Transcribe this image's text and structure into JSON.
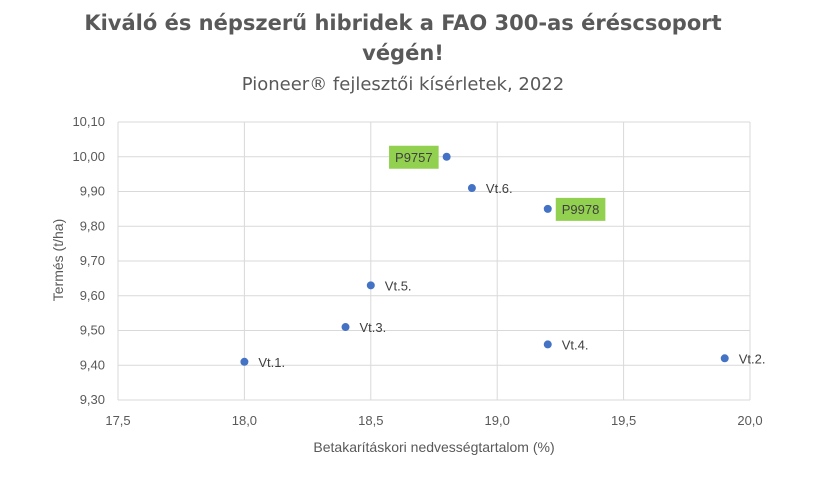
{
  "chart_data": {
    "type": "scatter",
    "title_lines": [
      "Kiváló és népszerű hibridek a FAO 300-as éréscsoport",
      "végén!"
    ],
    "subtitle": "Pioneer® fejlesztői kísérletek, 2022",
    "xlabel": "Betakarításkori nedvességtartalom (%)",
    "ylabel": "Termés (t/ha)",
    "xlim": [
      17.5,
      20.0
    ],
    "ylim": [
      9.3,
      10.1
    ],
    "x_ticks": [
      "17,5",
      "18,0",
      "18,5",
      "19,0",
      "19,5",
      "20,0"
    ],
    "y_ticks": [
      "9,30",
      "9,40",
      "9,50",
      "9,60",
      "9,70",
      "9,80",
      "9,90",
      "10,00",
      "10,10"
    ],
    "grid": true,
    "marker_color": "#4472c4",
    "highlight_color": "#92d050",
    "points": [
      {
        "label": "P9757",
        "x": 18.8,
        "y": 10.0,
        "highlight": true,
        "label_side": "left"
      },
      {
        "label": "Vt.6.",
        "x": 18.9,
        "y": 9.91,
        "highlight": false,
        "label_side": "right"
      },
      {
        "label": "P9978",
        "x": 19.2,
        "y": 9.85,
        "highlight": true,
        "label_side": "right"
      },
      {
        "label": "Vt.5.",
        "x": 18.5,
        "y": 9.63,
        "highlight": false,
        "label_side": "right"
      },
      {
        "label": "Vt.3.",
        "x": 18.4,
        "y": 9.51,
        "highlight": false,
        "label_side": "right"
      },
      {
        "label": "Vt.4.",
        "x": 19.2,
        "y": 9.46,
        "highlight": false,
        "label_side": "right"
      },
      {
        "label": "Vt.1.",
        "x": 18.0,
        "y": 9.41,
        "highlight": false,
        "label_side": "right"
      },
      {
        "label": "Vt.2.",
        "x": 19.9,
        "y": 9.42,
        "highlight": false,
        "label_side": "right"
      }
    ]
  }
}
